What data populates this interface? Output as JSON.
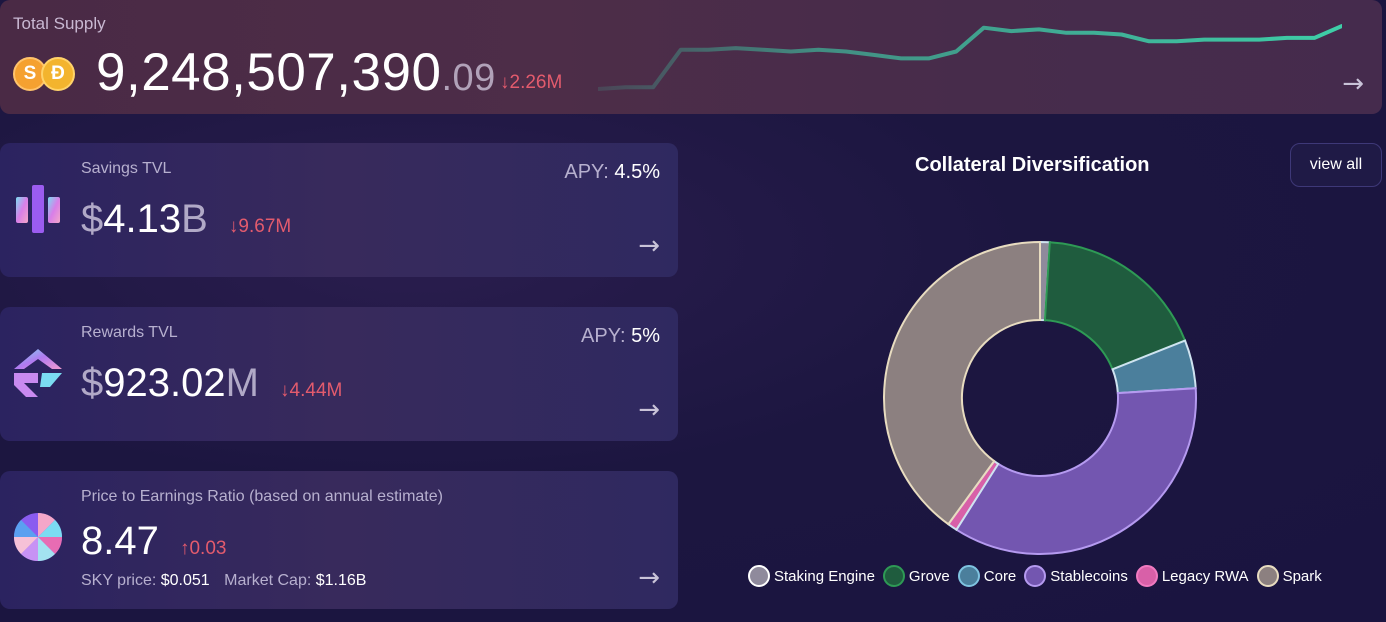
{
  "supply": {
    "label": "Total Supply",
    "value_int": "9,248,507,390",
    "value_dec": ".09",
    "delta": "↓2.26M",
    "coins": [
      "S",
      "Đ"
    ]
  },
  "cards": [
    {
      "title": "Savings TVL",
      "apy_label": "APY:",
      "apy_value": "4.5%",
      "currency": "$",
      "value": "4.13",
      "unit": "B",
      "delta": "↓9.67M"
    },
    {
      "title": "Rewards TVL",
      "apy_label": "APY:",
      "apy_value": "5%",
      "currency": "$",
      "value": "923.02",
      "unit": "M",
      "delta": "↓4.44M"
    },
    {
      "title": "Price to Earnings Ratio (based on annual estimate)",
      "value": "8.47",
      "delta": "↑0.03",
      "sky_label": "SKY price:",
      "sky_value": "$0.051",
      "mcap_label": "Market Cap:",
      "mcap_value": "$1.16B"
    }
  ],
  "chart": {
    "title": "Collateral Diversification",
    "view_all": "view all"
  },
  "chart_data": {
    "type": "pie",
    "title": "Collateral Diversification",
    "labels": [
      "Staking Engine",
      "Grove",
      "Core",
      "Stablecoins",
      "Legacy RWA",
      "Spark"
    ],
    "values": [
      1,
      18,
      5,
      35,
      1,
      40
    ],
    "colors": [
      "#8f8a9c",
      "#1f5c3e",
      "#4b7f9c",
      "#7356b0",
      "#d860a8",
      "#8c8080"
    ],
    "legend": "bottom"
  },
  "sparkline": {
    "values": [
      2,
      3,
      3,
      25,
      25,
      26,
      25,
      24,
      25,
      24,
      22,
      20,
      20,
      24,
      38,
      36,
      37,
      35,
      35,
      34,
      30,
      30,
      31,
      31,
      31,
      32,
      32,
      39
    ],
    "color": "#3ecfa8"
  }
}
